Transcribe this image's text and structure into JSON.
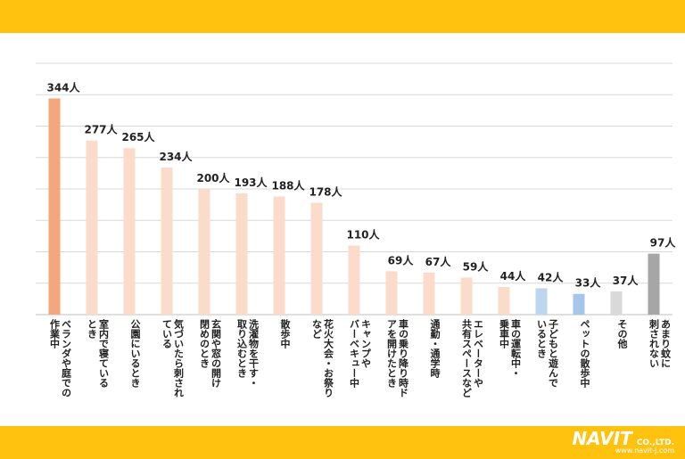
{
  "chart_data": {
    "type": "bar",
    "categories": [
      "ベランダや庭での\n作業中",
      "室内で寝ている\nとき",
      "公園にいるとき",
      "気づいたら刺され\nている",
      "玄関や窓の開け\n閉めのとき",
      "洗濯物を干す・\n取り込むとき",
      "散歩中",
      "花火大会・お祭り\nなど",
      "キャンプや\nバーベキュー中",
      "車の乗り降り時ド\nアを開けたとき",
      "通勤・通学時",
      "エレベーターや\n共有スペースなど",
      "車の運転中・\n乗車中",
      "子どもと遊んで\nいるとき",
      "ペットの散歩中",
      "その他",
      "あまり蚊に\n刺されない"
    ],
    "values": [
      344,
      277,
      265,
      234,
      200,
      193,
      188,
      178,
      110,
      69,
      67,
      59,
      44,
      42,
      33,
      37,
      97
    ],
    "value_labels": [
      "344人",
      "277人",
      "265人",
      "234人",
      "200人",
      "193人",
      "188人",
      "178人",
      "110人",
      "69人",
      "67人",
      "59人",
      "44人",
      "42人",
      "33人",
      "37人",
      "97人"
    ],
    "colors": [
      "#f4a77c",
      "#fbdccb",
      "#fbdccb",
      "#fbdccb",
      "#fbdccb",
      "#fbdccb",
      "#fbdccb",
      "#fbdccb",
      "#fbdccb",
      "#fbdccb",
      "#fbdccb",
      "#fbdccb",
      "#fbdccb",
      "#bdd5ef",
      "#a6c5ea",
      "#d9d9d9",
      "#a6a6a6"
    ],
    "ylim": [
      0,
      400
    ],
    "yticks": [
      0,
      50,
      100,
      150,
      200,
      250,
      300,
      350,
      400
    ],
    "grid": true
  },
  "brand": {
    "name": "NAVIT",
    "suffix": "CO.,LTD.",
    "url": "www.navit-j.com"
  }
}
